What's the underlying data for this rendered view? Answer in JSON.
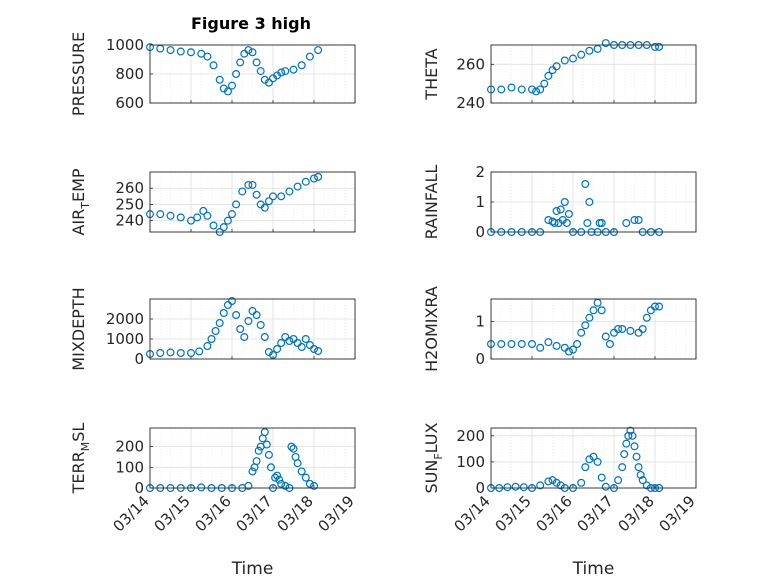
{
  "figure_title": "Figure 3 high",
  "colors": {
    "marker": "#0072BD",
    "axis": "#262626",
    "grid": "#dfdfdf",
    "minorgrid": "#ececec"
  },
  "chart_data": [
    {
      "type": "scatter",
      "panel": "top-left",
      "title": "Figure 3 high",
      "ylabel": "PRESSURE",
      "ylabel_main": "PRESSURE",
      "ylabel_sub": "",
      "ylabel_rest": "",
      "xlabel": "",
      "ylim": [
        600,
        1000
      ],
      "yticks": [
        600,
        800,
        1000
      ],
      "xlim": [
        0,
        5
      ],
      "xticks": [
        "03/14",
        "03/15",
        "03/16",
        "03/17",
        "03/18",
        "03/19"
      ],
      "show_xticklabels": false,
      "grid": true,
      "x": [
        0,
        0.25,
        0.5,
        0.75,
        1.0,
        1.25,
        1.4,
        1.55,
        1.7,
        1.8,
        1.9,
        2.0,
        2.1,
        2.2,
        2.3,
        2.4,
        2.5,
        2.6,
        2.7,
        2.8,
        2.9,
        3.0,
        3.1,
        3.2,
        3.3,
        3.5,
        3.7,
        3.9,
        4.1
      ],
      "y": [
        985,
        975,
        965,
        955,
        950,
        940,
        920,
        860,
        760,
        700,
        680,
        720,
        800,
        880,
        940,
        965,
        950,
        880,
        820,
        760,
        740,
        770,
        790,
        810,
        820,
        830,
        860,
        920,
        965
      ]
    },
    {
      "type": "scatter",
      "panel": "top-right",
      "ylabel": "THETA",
      "ylabel_main": "THETA",
      "ylabel_sub": "",
      "ylabel_rest": "",
      "xlabel": "",
      "ylim": [
        240,
        270
      ],
      "yticks": [
        240,
        260
      ],
      "xlim": [
        0,
        5
      ],
      "xticks": [
        "03/14",
        "03/15",
        "03/16",
        "03/17",
        "03/18",
        "03/19"
      ],
      "show_xticklabels": false,
      "grid": true,
      "x": [
        0,
        0.25,
        0.5,
        0.75,
        1.0,
        1.1,
        1.2,
        1.3,
        1.4,
        1.5,
        1.6,
        1.8,
        2.0,
        2.2,
        2.4,
        2.6,
        2.8,
        3.0,
        3.2,
        3.4,
        3.6,
        3.8,
        4.0,
        4.1
      ],
      "y": [
        247,
        247,
        248,
        247,
        247,
        246,
        247,
        250,
        254,
        257,
        259,
        262,
        263,
        265,
        267,
        268,
        271,
        270,
        270,
        270,
        270,
        270,
        269,
        269
      ]
    },
    {
      "type": "scatter",
      "panel": "row2-left",
      "ylabel": "AIR_TEMP",
      "ylabel_main": "AIR",
      "ylabel_sub": "T",
      "ylabel_rest": "EMP",
      "xlabel": "",
      "ylim": [
        233,
        270
      ],
      "yticks": [
        240,
        250,
        260
      ],
      "xlim": [
        0,
        5
      ],
      "xticks": [
        "03/14",
        "03/15",
        "03/16",
        "03/17",
        "03/18",
        "03/19"
      ],
      "show_xticklabels": false,
      "grid": true,
      "x": [
        0,
        0.25,
        0.5,
        0.75,
        1.0,
        1.15,
        1.3,
        1.4,
        1.55,
        1.7,
        1.8,
        1.9,
        2.0,
        2.1,
        2.25,
        2.4,
        2.5,
        2.6,
        2.7,
        2.8,
        2.9,
        3.0,
        3.2,
        3.4,
        3.6,
        3.8,
        4.0,
        4.1
      ],
      "y": [
        244,
        244,
        243,
        242,
        240,
        242,
        246,
        243,
        237,
        233,
        236,
        240,
        244,
        250,
        258,
        262,
        262,
        256,
        250,
        248,
        252,
        255,
        255,
        258,
        261,
        264,
        266,
        267
      ]
    },
    {
      "type": "scatter",
      "panel": "row2-right",
      "ylabel": "RAINFALL",
      "ylabel_main": "RAINFALL",
      "ylabel_sub": "",
      "ylabel_rest": "",
      "xlabel": "",
      "ylim": [
        0,
        2
      ],
      "yticks": [
        0,
        1,
        2
      ],
      "xlim": [
        0,
        5
      ],
      "xticks": [
        "03/14",
        "03/15",
        "03/16",
        "03/17",
        "03/18",
        "03/19"
      ],
      "show_xticklabels": false,
      "grid": true,
      "x": [
        0,
        0.25,
        0.5,
        0.75,
        1.0,
        1.2,
        1.4,
        1.5,
        1.55,
        1.6,
        1.65,
        1.7,
        1.75,
        1.8,
        1.85,
        1.9,
        2.0,
        2.2,
        2.3,
        2.35,
        2.4,
        2.45,
        2.6,
        2.65,
        2.7,
        2.8,
        3.0,
        3.3,
        3.5,
        3.6,
        3.7,
        3.9,
        4.1
      ],
      "y": [
        0,
        0,
        0,
        0,
        0,
        0,
        0.4,
        0.35,
        0.3,
        0.7,
        0.3,
        0.75,
        0.4,
        1.0,
        0.3,
        0.6,
        0,
        0,
        1.6,
        0.3,
        1.0,
        0,
        0,
        0.3,
        0.3,
        0,
        0,
        0.3,
        0.4,
        0.4,
        0,
        0,
        0
      ]
    },
    {
      "type": "scatter",
      "panel": "row3-left",
      "ylabel": "MIXDEPTH",
      "ylabel_main": "MIXDEPTH",
      "ylabel_sub": "",
      "ylabel_rest": "",
      "xlabel": "",
      "ylim": [
        0,
        3000
      ],
      "yticks": [
        0,
        1000,
        2000
      ],
      "xlim": [
        0,
        5
      ],
      "xticks": [
        "03/14",
        "03/15",
        "03/16",
        "03/17",
        "03/18",
        "03/19"
      ],
      "show_xticklabels": false,
      "grid": true,
      "x": [
        0,
        0.25,
        0.5,
        0.75,
        1.0,
        1.2,
        1.4,
        1.5,
        1.6,
        1.7,
        1.8,
        1.9,
        2.0,
        2.1,
        2.2,
        2.3,
        2.4,
        2.5,
        2.6,
        2.7,
        2.8,
        2.9,
        3.0,
        3.1,
        3.2,
        3.3,
        3.4,
        3.5,
        3.6,
        3.7,
        3.8,
        3.9,
        4.0,
        4.1
      ],
      "y": [
        250,
        300,
        330,
        300,
        300,
        380,
        650,
        1000,
        1400,
        1800,
        2300,
        2700,
        2900,
        2200,
        1500,
        1100,
        1900,
        2400,
        2200,
        1700,
        1100,
        350,
        200,
        500,
        800,
        1100,
        900,
        1000,
        800,
        600,
        1000,
        700,
        500,
        400
      ]
    },
    {
      "type": "scatter",
      "panel": "row3-right",
      "ylabel": "H2OMIXRA",
      "ylabel_main": "H2OMIXRA",
      "ylabel_sub": "",
      "ylabel_rest": "",
      "xlabel": "",
      "ylim": [
        0,
        1.6
      ],
      "yticks": [
        0,
        1
      ],
      "xlim": [
        0,
        5
      ],
      "xticks": [
        "03/14",
        "03/15",
        "03/16",
        "03/17",
        "03/18",
        "03/19"
      ],
      "show_xticklabels": false,
      "grid": true,
      "x": [
        0,
        0.25,
        0.5,
        0.75,
        1.0,
        1.2,
        1.4,
        1.6,
        1.8,
        1.9,
        2.0,
        2.1,
        2.2,
        2.3,
        2.4,
        2.5,
        2.6,
        2.7,
        2.8,
        2.9,
        3.0,
        3.1,
        3.2,
        3.4,
        3.6,
        3.7,
        3.8,
        3.9,
        4.0,
        4.1
      ],
      "y": [
        0.4,
        0.4,
        0.4,
        0.4,
        0.4,
        0.3,
        0.45,
        0.35,
        0.3,
        0.2,
        0.25,
        0.4,
        0.7,
        0.9,
        1.1,
        1.3,
        1.5,
        1.3,
        0.6,
        0.4,
        0.7,
        0.8,
        0.8,
        0.75,
        0.7,
        0.8,
        1.1,
        1.3,
        1.4,
        1.4
      ]
    },
    {
      "type": "scatter",
      "panel": "bottom-left",
      "ylabel": "TERR_MSL",
      "ylabel_main": "TERR",
      "ylabel_sub": "M",
      "ylabel_rest": "SL",
      "xlabel": "Time",
      "ylim": [
        0,
        290
      ],
      "yticks": [
        0,
        100,
        200
      ],
      "xlim": [
        0,
        5
      ],
      "xticks": [
        "03/14",
        "03/15",
        "03/16",
        "03/17",
        "03/18",
        "03/19"
      ],
      "show_xticklabels": true,
      "grid": true,
      "x": [
        0,
        0.25,
        0.5,
        0.75,
        1.0,
        1.25,
        1.5,
        1.75,
        2.0,
        2.25,
        2.4,
        2.5,
        2.55,
        2.6,
        2.65,
        2.7,
        2.75,
        2.8,
        2.85,
        2.9,
        2.95,
        3.0,
        3.05,
        3.1,
        3.15,
        3.2,
        3.3,
        3.4,
        3.45,
        3.5,
        3.55,
        3.6,
        3.7,
        3.8,
        3.9,
        4.0
      ],
      "y": [
        0,
        0,
        0,
        0,
        0,
        3,
        0,
        0,
        0,
        0,
        10,
        80,
        100,
        130,
        180,
        200,
        240,
        270,
        210,
        160,
        100,
        0,
        50,
        60,
        40,
        20,
        10,
        0,
        200,
        190,
        150,
        120,
        80,
        50,
        20,
        10
      ]
    },
    {
      "type": "scatter",
      "panel": "bottom-right",
      "ylabel": "SUN_FLUX",
      "ylabel_main": "SUN",
      "ylabel_sub": "F",
      "ylabel_rest": "LUX",
      "xlabel": "Time",
      "ylim": [
        0,
        230
      ],
      "yticks": [
        0,
        100,
        200
      ],
      "xlim": [
        0,
        5
      ],
      "xticks": [
        "03/14",
        "03/15",
        "03/16",
        "03/17",
        "03/18",
        "03/19"
      ],
      "show_xticklabels": true,
      "grid": true,
      "x": [
        0,
        0.2,
        0.4,
        0.6,
        0.8,
        1.0,
        1.2,
        1.4,
        1.5,
        1.6,
        1.7,
        1.8,
        2.0,
        2.2,
        2.3,
        2.4,
        2.5,
        2.6,
        2.7,
        2.8,
        3.0,
        3.1,
        3.2,
        3.25,
        3.3,
        3.35,
        3.4,
        3.45,
        3.5,
        3.55,
        3.6,
        3.65,
        3.7,
        3.8,
        3.9,
        4.0,
        4.1
      ],
      "y": [
        0,
        0,
        3,
        5,
        3,
        0,
        10,
        25,
        30,
        20,
        10,
        0,
        0,
        20,
        80,
        110,
        120,
        100,
        40,
        5,
        0,
        30,
        80,
        130,
        170,
        200,
        220,
        200,
        160,
        120,
        80,
        50,
        30,
        10,
        0,
        0,
        0
      ]
    }
  ]
}
